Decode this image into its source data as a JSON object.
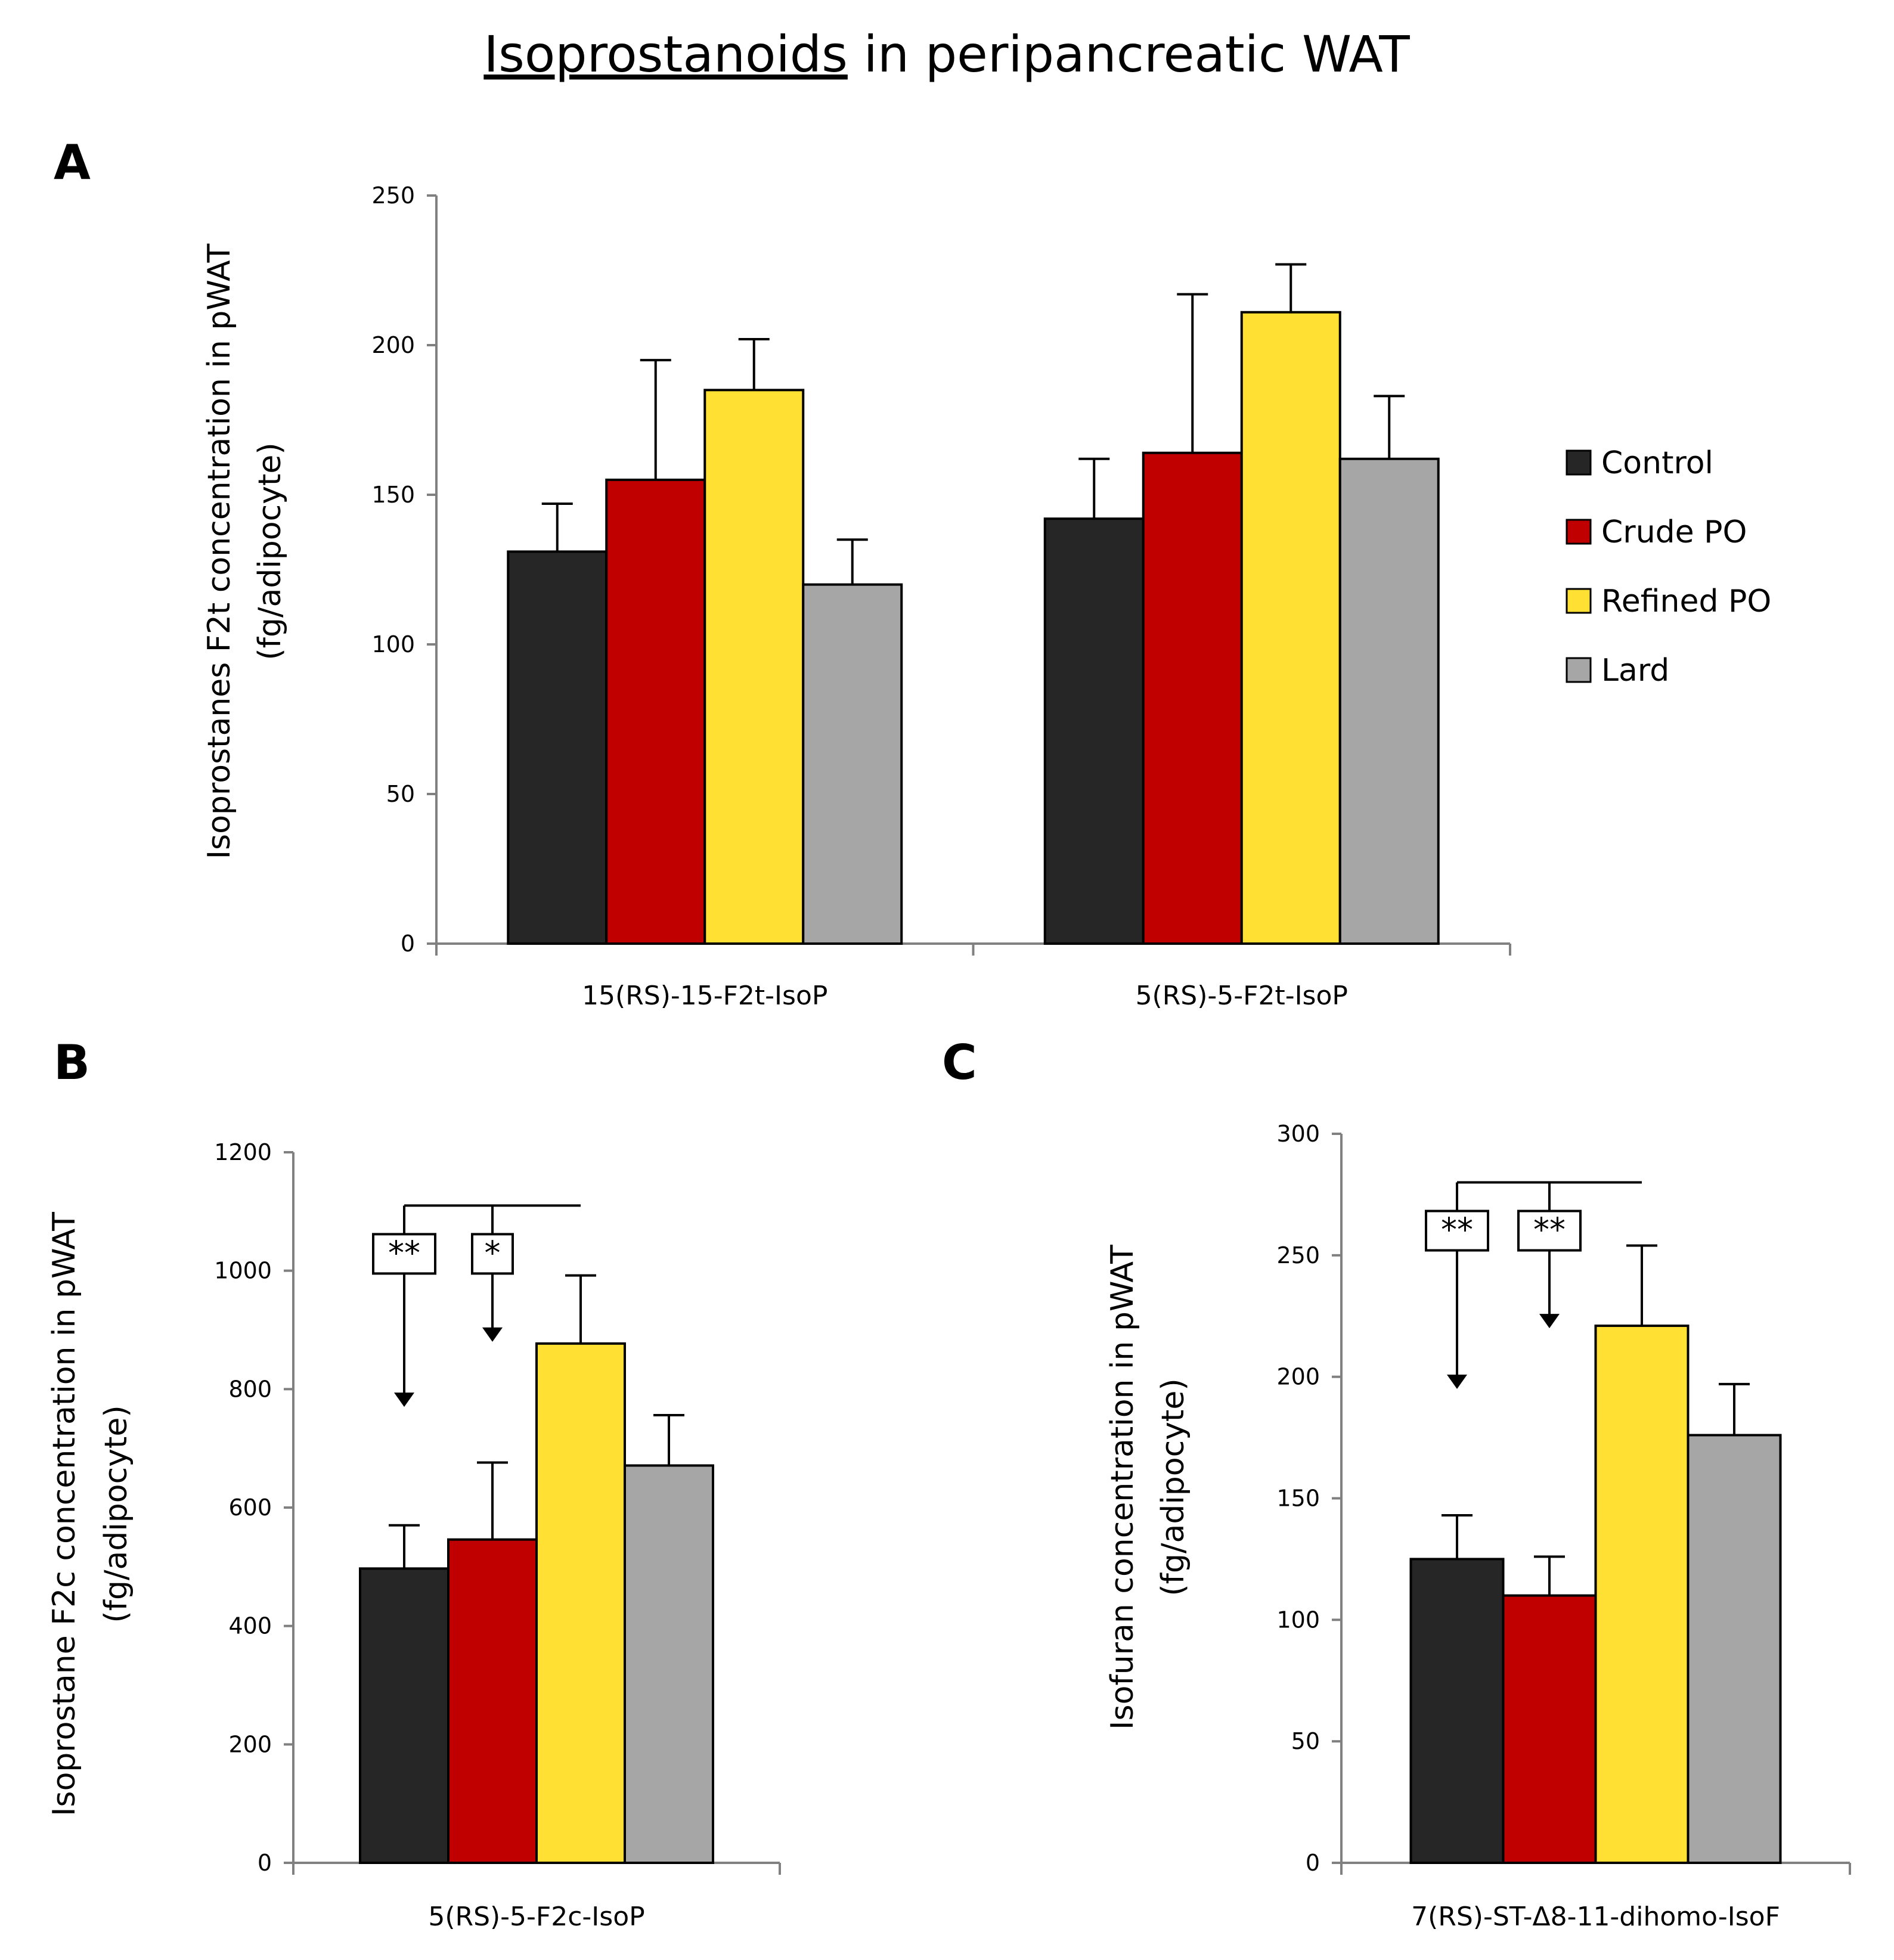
{
  "title": {
    "underlined": "Isoprostanoids",
    "rest": " in peripancreatic WAT"
  },
  "legend": [
    {
      "label": "Control",
      "color": "#262626"
    },
    {
      "label": "Crude PO",
      "color": "#c00000"
    },
    {
      "label": "Refined PO",
      "color": "#ffe033"
    },
    {
      "label": "Lard",
      "color": "#a6a6a6"
    }
  ],
  "chart_data": [
    {
      "panel": "A",
      "type": "bar",
      "ylabel_line1": "Isoprostanes F2t concentration in pWAT",
      "ylabel_line2": "(fg/adipocyte)",
      "ylim": [
        0,
        250
      ],
      "yticks": [
        0,
        50,
        100,
        150,
        200,
        250
      ],
      "categories": [
        "15(RS)-15-F2t-IsoP",
        "5(RS)-5-F2t-IsoP"
      ],
      "series": [
        {
          "name": "Control",
          "values": [
            131,
            142
          ],
          "errors": [
            16,
            20
          ]
        },
        {
          "name": "Crude PO",
          "values": [
            155,
            164
          ],
          "errors": [
            40,
            53
          ]
        },
        {
          "name": "Refined PO",
          "values": [
            185,
            211
          ],
          "errors": [
            17,
            16
          ]
        },
        {
          "name": "Lard",
          "values": [
            120,
            162
          ],
          "errors": [
            15,
            21
          ]
        }
      ],
      "significance": []
    },
    {
      "panel": "B",
      "type": "bar",
      "ylabel_line1": "Isoprostane F2c concentration in pWAT",
      "ylabel_line2": "(fg/adipocyte)",
      "ylim": [
        0,
        1200
      ],
      "yticks": [
        0,
        200,
        400,
        600,
        800,
        1000,
        1200
      ],
      "categories": [
        "5(RS)-5-F2c-IsoP"
      ],
      "series": [
        {
          "name": "Control",
          "values": [
            497
          ],
          "errors": [
            73
          ]
        },
        {
          "name": "Crude PO",
          "values": [
            546
          ],
          "errors": [
            130
          ]
        },
        {
          "name": "Refined PO",
          "values": [
            877
          ],
          "errors": [
            115
          ]
        },
        {
          "name": "Lard",
          "values": [
            671
          ],
          "errors": [
            85
          ]
        }
      ],
      "significance": [
        {
          "label": "**",
          "from": "Control",
          "to": "Refined PO"
        },
        {
          "label": "*",
          "from": "Crude PO",
          "to": "Refined PO"
        }
      ]
    },
    {
      "panel": "C",
      "type": "bar",
      "ylabel_line1": "Isofuran concentration in pWAT",
      "ylabel_line2": "(fg/adipocyte)",
      "ylim": [
        0,
        300
      ],
      "yticks": [
        0,
        50,
        100,
        150,
        200,
        250,
        300
      ],
      "categories": [
        "7(RS)-ST-Δ8-11-dihomo-IsoF"
      ],
      "series": [
        {
          "name": "Control",
          "values": [
            125
          ],
          "errors": [
            18
          ]
        },
        {
          "name": "Crude PO",
          "values": [
            110
          ],
          "errors": [
            16
          ]
        },
        {
          "name": "Refined PO",
          "values": [
            221
          ],
          "errors": [
            33
          ]
        },
        {
          "name": "Lard",
          "values": [
            176
          ],
          "errors": [
            21
          ]
        }
      ],
      "significance": [
        {
          "label": "**",
          "from": "Control",
          "to": "Refined PO"
        },
        {
          "label": "**",
          "from": "Crude PO",
          "to": "Refined PO"
        }
      ]
    }
  ]
}
